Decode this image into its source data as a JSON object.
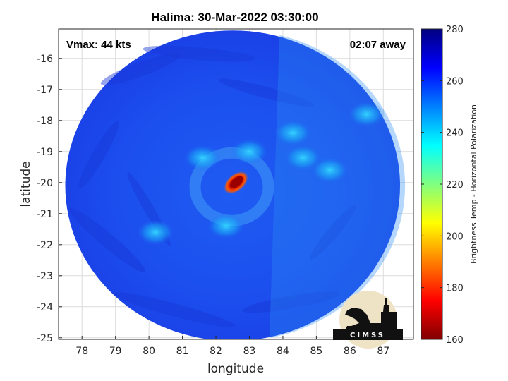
{
  "chart_data": {
    "type": "heatmap",
    "title": "Halima: 30-Mar-2022 03:30:00",
    "xlabel": "longitude",
    "ylabel": "latitude",
    "xlim": [
      77.3,
      87.9
    ],
    "ylim": [
      -25.05,
      -15.05
    ],
    "x_ticks": [
      78,
      79,
      80,
      81,
      82,
      83,
      84,
      85,
      86,
      87
    ],
    "y_ticks": [
      -16,
      -17,
      -18,
      -19,
      -20,
      -21,
      -22,
      -23,
      -24,
      -25
    ],
    "grid": true,
    "annotations": {
      "left": "Vmax: 44 kts",
      "right": "02:07 away"
    },
    "swath": {
      "center": [
        82.5,
        -20.1
      ],
      "radius_deg": 5.0,
      "background_value": 262,
      "eye": {
        "lon": 82.6,
        "lat": -20.0,
        "min_value": 165
      },
      "rain_bands": [
        {
          "lon": 84.6,
          "lat": -19.2,
          "value": 236
        },
        {
          "lon": 85.4,
          "lat": -19.6,
          "value": 238
        },
        {
          "lon": 84.3,
          "lat": -18.4,
          "value": 240
        },
        {
          "lon": 86.5,
          "lat": -17.8,
          "value": 242
        },
        {
          "lon": 83.0,
          "lat": -19.0,
          "value": 240
        },
        {
          "lon": 81.6,
          "lat": -19.2,
          "value": 244
        },
        {
          "lon": 82.3,
          "lat": -21.4,
          "value": 246
        },
        {
          "lon": 80.2,
          "lat": -21.6,
          "value": 248
        }
      ]
    },
    "colorbar": {
      "label": "Brightness Temp - Horizontal Polarization",
      "min": 160,
      "max": 280,
      "ticks": [
        160,
        180,
        200,
        220,
        240,
        260,
        280
      ],
      "colormap": "jet"
    }
  },
  "logo": {
    "text": "CIMSS"
  }
}
